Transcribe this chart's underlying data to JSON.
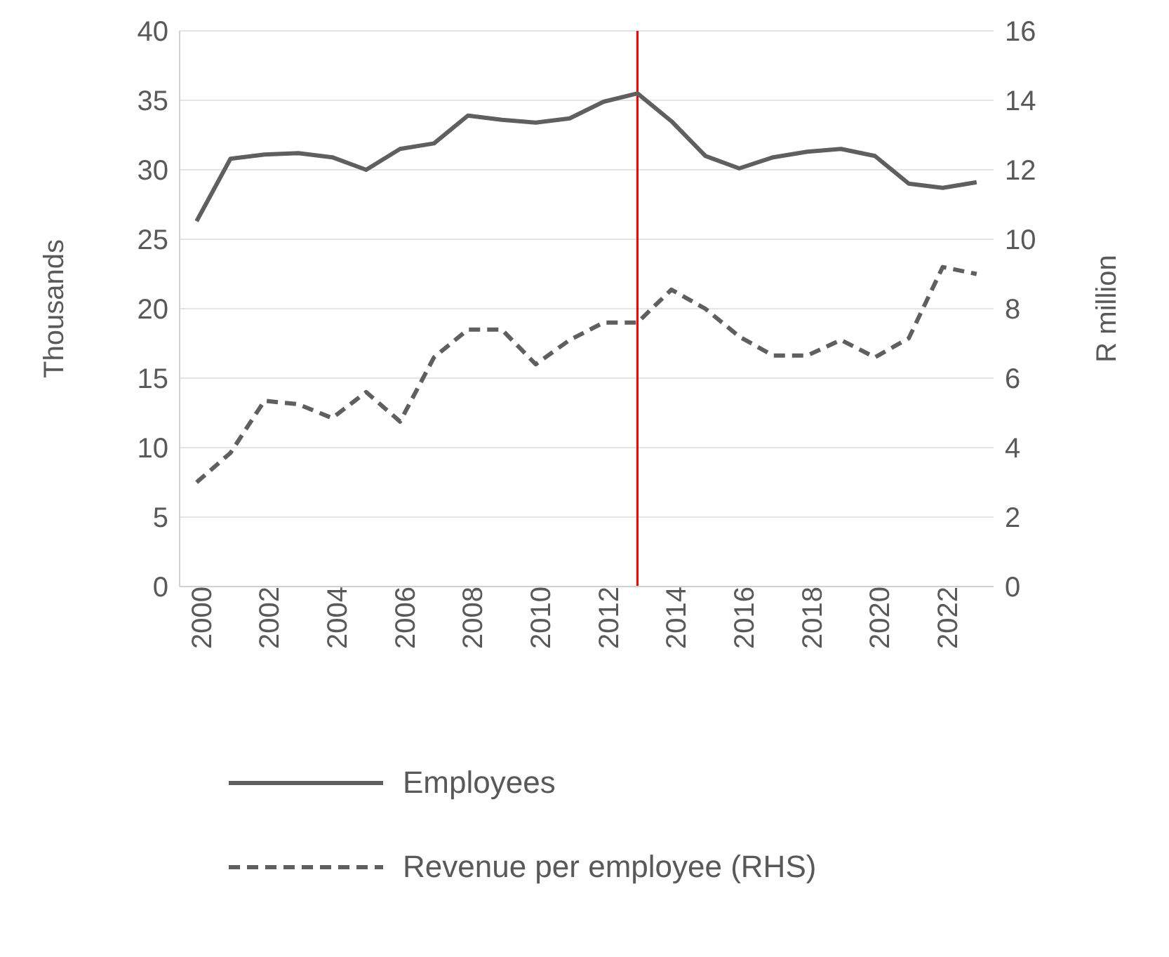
{
  "chart_data": {
    "type": "line",
    "ylabel": "Thousands",
    "y2label": "R million",
    "x": [
      2000,
      2001,
      2002,
      2003,
      2004,
      2005,
      2006,
      2007,
      2008,
      2009,
      2010,
      2011,
      2012,
      2013,
      2014,
      2015,
      2016,
      2017,
      2018,
      2019,
      2020,
      2021,
      2022,
      2023
    ],
    "xlim": [
      1999.5,
      2023.5
    ],
    "xticks": [
      2000,
      2002,
      2004,
      2006,
      2008,
      2010,
      2012,
      2014,
      2016,
      2018,
      2020,
      2022
    ],
    "ylim": [
      0,
      40
    ],
    "yticks": [
      0,
      5,
      10,
      15,
      20,
      25,
      30,
      35,
      40
    ],
    "y2lim": [
      0,
      16
    ],
    "y2ticks": [
      0,
      2,
      4,
      6,
      8,
      10,
      12,
      14,
      16
    ],
    "series": [
      {
        "name": "Employees",
        "color": "#5f5f5f",
        "line_style": "solid",
        "values": [
          26.3,
          30.8,
          31.1,
          31.2,
          30.9,
          30.0,
          31.5,
          31.9,
          33.9,
          33.6,
          33.4,
          33.7,
          34.9,
          35.5,
          33.5,
          31.0,
          30.1,
          30.9,
          31.3,
          31.5,
          31.0,
          29.0,
          28.7,
          29.1
        ]
      },
      {
        "name": "Revenue per employee (RHS)",
        "color": "#5f5f5f",
        "line_style": "dashed",
        "axis": "y2",
        "values": [
          3.0,
          3.85,
          5.35,
          5.25,
          4.85,
          5.6,
          4.75,
          6.6,
          7.4,
          7.4,
          6.4,
          7.1,
          7.6,
          7.6,
          8.55,
          8.0,
          7.2,
          6.65,
          6.65,
          7.1,
          6.6,
          7.15,
          9.2,
          9.0
        ]
      }
    ],
    "ref_lines": [
      {
        "axis": "x",
        "value": 2013,
        "color": "#ff0000"
      }
    ],
    "grid": "y",
    "legend": "bottom",
    "marker": "none"
  }
}
